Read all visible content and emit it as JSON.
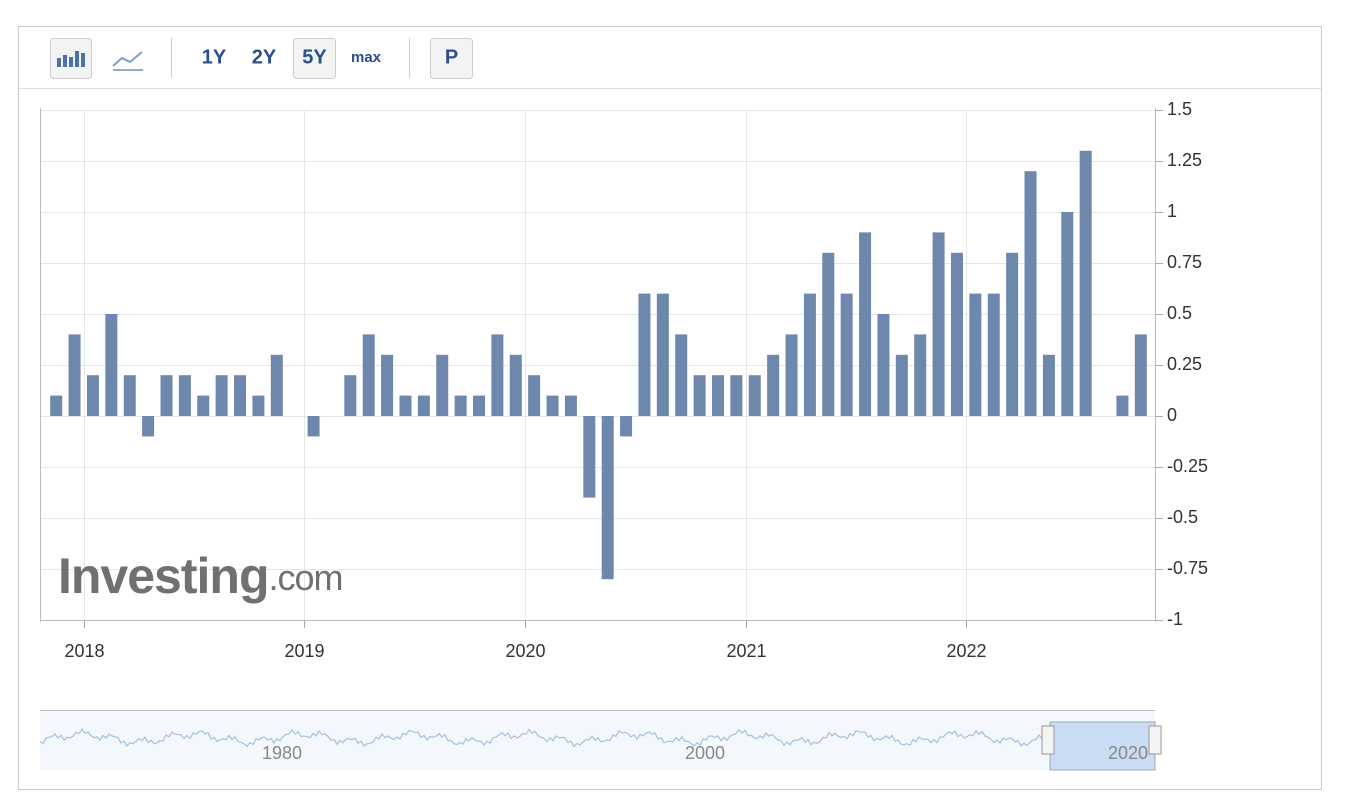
{
  "toolbar": {
    "ranges": [
      "1Y",
      "2Y",
      "5Y",
      "max"
    ],
    "print": "P"
  },
  "watermark": {
    "brand": "Investing",
    "suffix": ".com"
  },
  "navigator": {
    "labels": [
      "1980",
      "2000",
      "2020"
    ]
  },
  "chart_data": {
    "type": "bar",
    "color": "#6d87ad",
    "grid": true,
    "categories": [
      null,
      null,
      "2018",
      null,
      null,
      null,
      null,
      null,
      null,
      null,
      null,
      null,
      null,
      null,
      "2019",
      null,
      null,
      null,
      null,
      null,
      null,
      null,
      null,
      null,
      null,
      null,
      "2020",
      null,
      null,
      null,
      null,
      null,
      null,
      null,
      null,
      null,
      null,
      null,
      "2021",
      null,
      null,
      null,
      null,
      null,
      null,
      null,
      null,
      null,
      null,
      null,
      "2022",
      null,
      null,
      null,
      null,
      null,
      null,
      null,
      null,
      null
    ],
    "values": [
      0.1,
      0.4,
      0.2,
      0.5,
      0.2,
      -0.1,
      0.2,
      0.2,
      0.1,
      0.2,
      0.2,
      0.1,
      0.3,
      0,
      -0.1,
      0,
      0.2,
      0.4,
      0.3,
      0.1,
      0.1,
      0.3,
      0.1,
      0.1,
      0.4,
      0.3,
      0.2,
      0.1,
      0.1,
      -0.4,
      -0.8,
      -0.1,
      0.6,
      0.6,
      0.4,
      0.2,
      0.2,
      0.2,
      0.2,
      0.3,
      0.4,
      0.6,
      0.8,
      0.6,
      0.9,
      0.5,
      0.3,
      0.4,
      0.9,
      0.8,
      0.6,
      0.6,
      0.8,
      1.2,
      0.3,
      1.0,
      1.3,
      0,
      0.1,
      0.4
    ],
    "ylim": [
      -1,
      1.5
    ],
    "yticks": [
      -1,
      -0.75,
      -0.5,
      -0.25,
      0,
      0.25,
      0.5,
      0.75,
      1,
      1.25,
      1.5
    ]
  }
}
